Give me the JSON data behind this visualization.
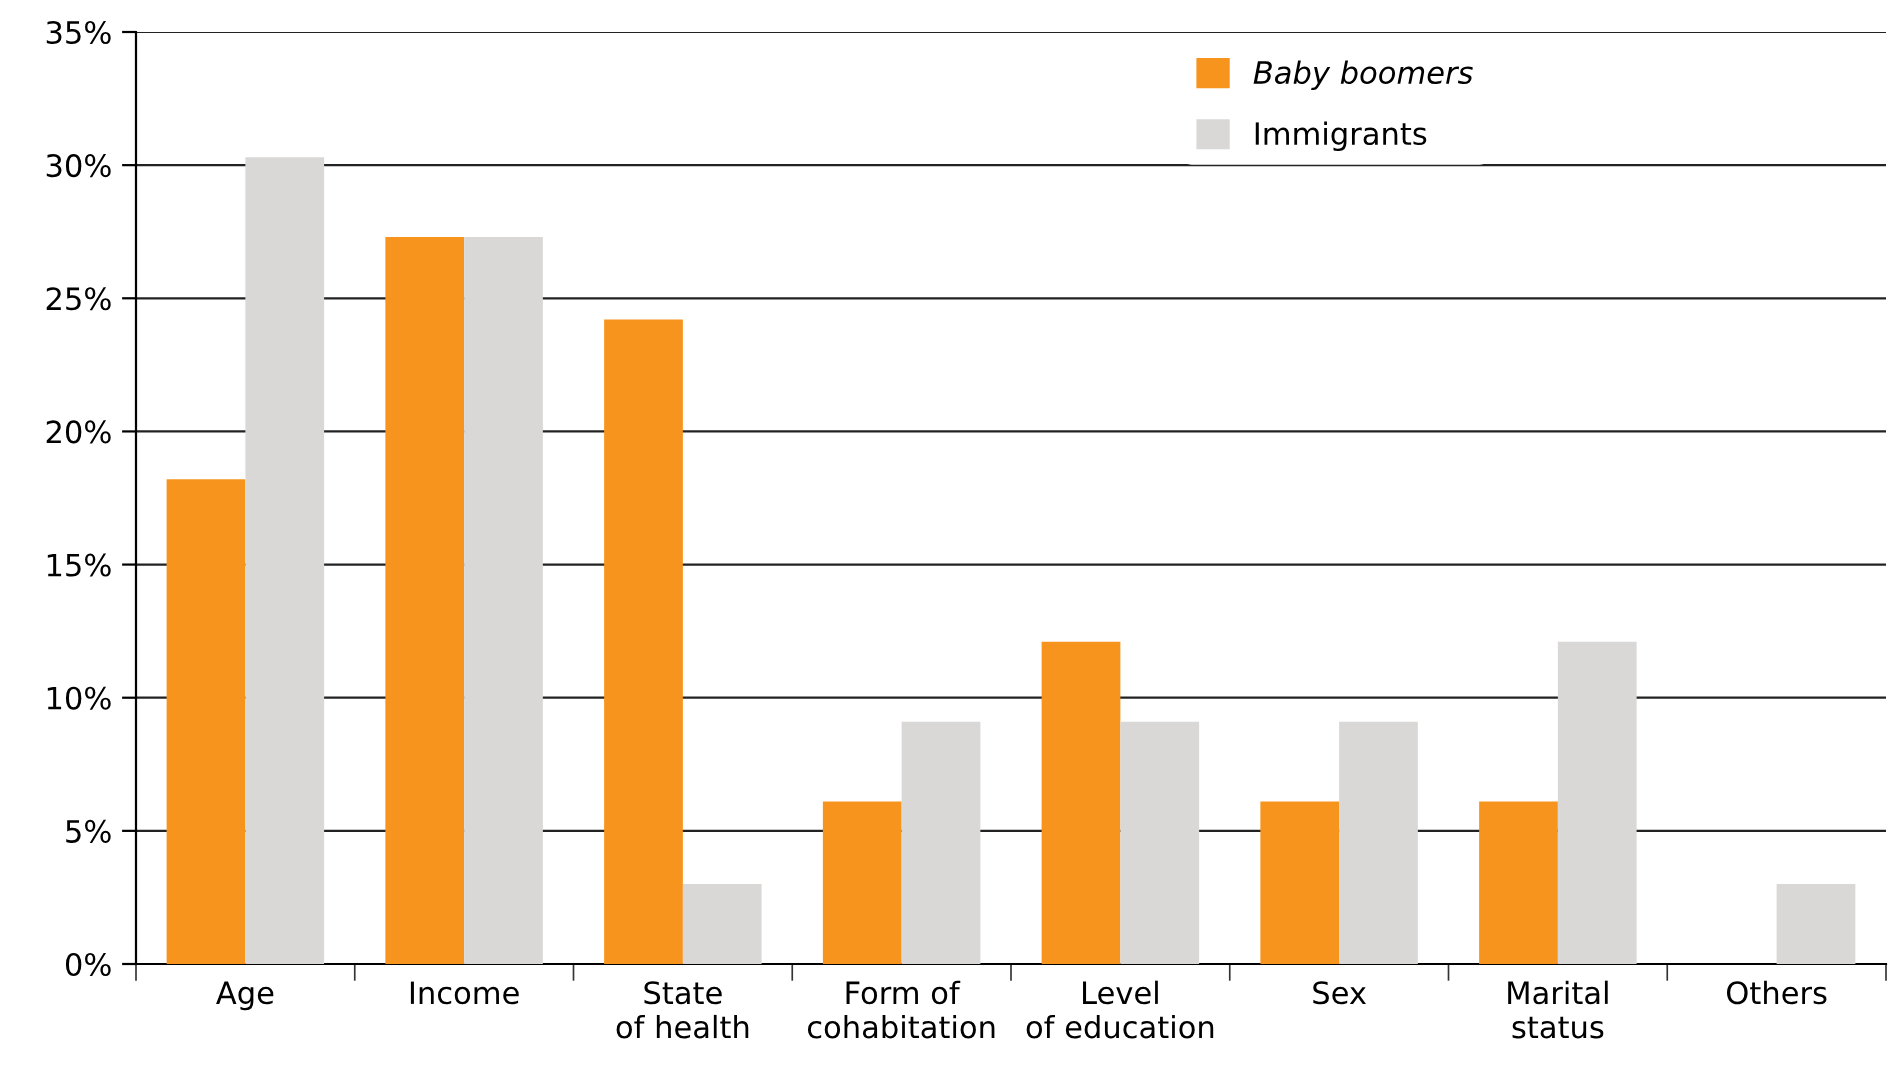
{
  "chart_data": {
    "type": "bar",
    "categories": [
      "Age",
      "Income",
      "State\nof health",
      "Form of\ncohabitation",
      "Level\nof education",
      "Sex",
      "Marital\nstatus",
      "Others"
    ],
    "series": [
      {
        "name": "Baby boomers",
        "color": "#f7941d",
        "values": [
          18.2,
          27.3,
          24.2,
          6.1,
          12.1,
          6.1,
          6.1,
          null
        ]
      },
      {
        "name": "Immigrants",
        "color": "#d9d8d6",
        "values": [
          30.3,
          27.3,
          3.0,
          9.1,
          9.1,
          9.1,
          12.1,
          3.0
        ]
      }
    ],
    "ylim": [
      0,
      35
    ],
    "yticks": [
      {
        "value": 0,
        "label": "0%"
      },
      {
        "value": 5,
        "label": "5%"
      },
      {
        "value": 10,
        "label": "10%"
      },
      {
        "value": 15,
        "label": "15%"
      },
      {
        "value": 20,
        "label": "20%"
      },
      {
        "value": 25,
        "label": "25%"
      },
      {
        "value": 30,
        "label": "30%"
      },
      {
        "value": 35,
        "label": "35%"
      }
    ],
    "grid": "y",
    "legend": "top right"
  }
}
